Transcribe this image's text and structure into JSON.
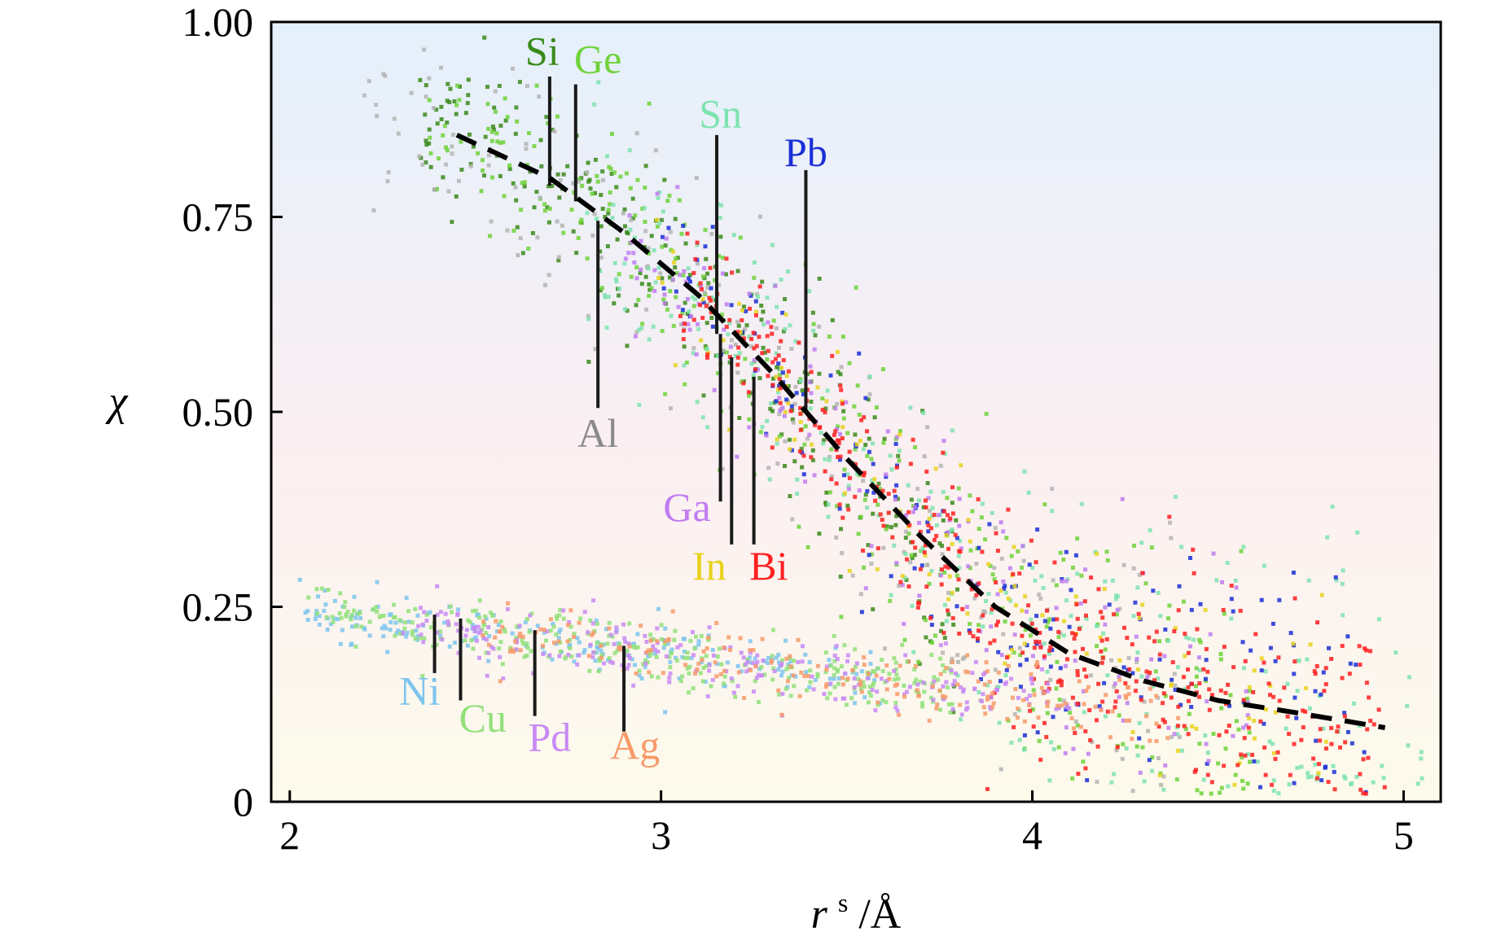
{
  "chart_data": {
    "type": "scatter",
    "title": "",
    "xlabel": {
      "main": "r",
      "sup": "s",
      "unit": "/Å"
    },
    "ylabel": "χ",
    "xlim": [
      1.95,
      5.1
    ],
    "ylim": [
      0,
      1.0
    ],
    "xticks": [
      2,
      3,
      4,
      5
    ],
    "xtick_labels": [
      "2",
      "3",
      "4",
      "5"
    ],
    "yticks": [
      0,
      0.25,
      0.5,
      0.75,
      1.0
    ],
    "ytick_labels": [
      "0",
      "0.25",
      "0.50",
      "0.75",
      "1.00"
    ],
    "grid": false,
    "legend": "none",
    "background_gradient": [
      "#e4f0fb",
      "#fbeff2",
      "#fdfbec"
    ],
    "trend_line": {
      "style": "dashed",
      "color": "#000000",
      "x": [
        2.45,
        2.7,
        2.9,
        3.1,
        3.3,
        3.5,
        3.7,
        3.9,
        4.1,
        4.3,
        4.5,
        4.7,
        4.95
      ],
      "y": [
        0.855,
        0.8,
        0.73,
        0.65,
        0.55,
        0.44,
        0.34,
        0.25,
        0.19,
        0.155,
        0.13,
        0.115,
        0.095
      ]
    },
    "series": [
      {
        "name": "Si",
        "color": "#3a8a1a",
        "band": "upper",
        "x_range": [
          2.35,
          3.8
        ],
        "spread": 0.055,
        "count": 260,
        "marker_x": 2.7,
        "marker_y": [
          0.93,
          0.79
        ]
      },
      {
        "name": "Ge",
        "color": "#6fd23a",
        "band": "upper",
        "x_range": [
          2.35,
          4.6
        ],
        "spread": 0.06,
        "count": 320,
        "marker_x": 2.77,
        "marker_y": [
          0.92,
          0.77
        ]
      },
      {
        "name": "Al",
        "color": "#b4b4b4",
        "band": "upper",
        "x_range": [
          2.2,
          4.4
        ],
        "spread": 0.07,
        "count": 200,
        "marker_x": 2.83,
        "marker_y": [
          0.745,
          0.505
        ]
      },
      {
        "name": "Sn",
        "color": "#7ee3b0",
        "band": "upper",
        "x_range": [
          2.8,
          5.05
        ],
        "spread": 0.065,
        "count": 300,
        "marker_x": 3.15,
        "marker_y": [
          0.855,
          0.6
        ]
      },
      {
        "name": "Pb",
        "color": "#1a2fd6",
        "band": "upper",
        "x_range": [
          3.0,
          4.9
        ],
        "spread": 0.045,
        "count": 180,
        "marker_x": 3.39,
        "marker_y": [
          0.81,
          0.5
        ]
      },
      {
        "name": "Ga",
        "color": "#c07cf0",
        "band": "upper",
        "x_range": [
          2.9,
          4.6
        ],
        "spread": 0.045,
        "count": 160,
        "marker_x": 3.16,
        "marker_y": [
          0.6,
          0.385
        ]
      },
      {
        "name": "In",
        "color": "#e8d21e",
        "band": "upper",
        "x_range": [
          2.95,
          4.8
        ],
        "spread": 0.045,
        "count": 110,
        "marker_x": 3.19,
        "marker_y": [
          0.57,
          0.33
        ]
      },
      {
        "name": "Bi",
        "color": "#ff2020",
        "band": "upper",
        "x_range": [
          3.05,
          4.95
        ],
        "spread": 0.04,
        "count": 420,
        "marker_x": 3.25,
        "marker_y": [
          0.545,
          0.33
        ]
      },
      {
        "name": "Ni",
        "color": "#7ec4ee",
        "band": "lower",
        "x_range": [
          2.0,
          3.6
        ],
        "spread": 0.018,
        "count": 220,
        "marker_x": 2.39,
        "marker_y": [
          0.24,
          0.165
        ]
      },
      {
        "name": "Cu",
        "color": "#92e07a",
        "band": "lower",
        "x_range": [
          2.05,
          3.8
        ],
        "spread": 0.02,
        "count": 300,
        "marker_x": 2.46,
        "marker_y": [
          0.235,
          0.13
        ]
      },
      {
        "name": "Pd",
        "color": "#c889f5",
        "band": "lower",
        "x_range": [
          2.3,
          4.1
        ],
        "spread": 0.02,
        "count": 220,
        "marker_x": 2.66,
        "marker_y": [
          0.22,
          0.11
        ]
      },
      {
        "name": "Ag",
        "color": "#f79a6a",
        "band": "lower",
        "x_range": [
          2.5,
          4.4
        ],
        "spread": 0.02,
        "count": 200,
        "marker_x": 2.9,
        "marker_y": [
          0.2,
          0.09
        ]
      }
    ],
    "labels": [
      {
        "text": "Si",
        "color": "#3a8a1a",
        "x": 2.68,
        "y": 0.945
      },
      {
        "text": "Ge",
        "color": "#6fd23a",
        "x": 2.83,
        "y": 0.935
      },
      {
        "text": "Sn",
        "color": "#7ee3b0",
        "x": 3.16,
        "y": 0.865
      },
      {
        "text": "Pb",
        "color": "#1a2fd6",
        "x": 3.39,
        "y": 0.815
      },
      {
        "text": "Al",
        "color": "#8a8a8a",
        "x": 2.83,
        "y": 0.455
      },
      {
        "text": "Ga",
        "color": "#c07cf0",
        "x": 3.07,
        "y": 0.36
      },
      {
        "text": "In",
        "color": "#e8d21e",
        "x": 3.13,
        "y": 0.285
      },
      {
        "text": "Bi",
        "color": "#ff2020",
        "x": 3.29,
        "y": 0.285
      },
      {
        "text": "Ni",
        "color": "#7ec4ee",
        "x": 2.35,
        "y": 0.125
      },
      {
        "text": "Cu",
        "color": "#92e07a",
        "x": 2.52,
        "y": 0.09
      },
      {
        "text": "Pd",
        "color": "#c889f5",
        "x": 2.7,
        "y": 0.065
      },
      {
        "text": "Ag",
        "color": "#f79a6a",
        "x": 2.93,
        "y": 0.055
      }
    ]
  }
}
